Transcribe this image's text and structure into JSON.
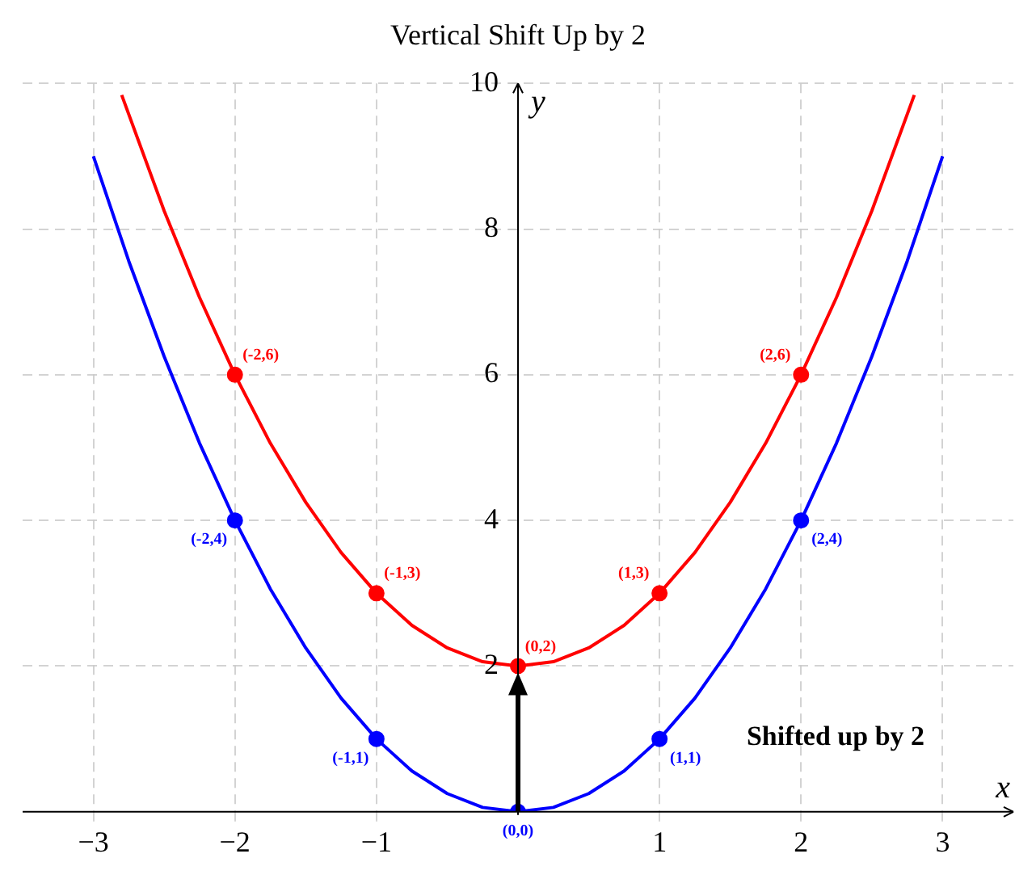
{
  "chart_data": {
    "type": "line",
    "title": "Vertical Shift Up by 2",
    "xlabel": "x",
    "ylabel": "y",
    "xlim": [
      -3.5,
      3.5
    ],
    "ylim": [
      0,
      10
    ],
    "xticks": [
      {
        "value": -3,
        "label": "−3"
      },
      {
        "value": -2,
        "label": "−2"
      },
      {
        "value": -1,
        "label": "−1"
      },
      1,
      2,
      3
    ],
    "yticks": [
      2,
      4,
      6,
      8,
      10
    ],
    "grid": true,
    "legend": false,
    "series": [
      {
        "color": "#0000ff",
        "marker": "none",
        "x": [
          -3,
          -2.75,
          -2.5,
          -2.25,
          -2,
          -1.75,
          -1.5,
          -1.25,
          -1,
          -0.75,
          -0.5,
          -0.25,
          0,
          0.25,
          0.5,
          0.75,
          1,
          1.25,
          1.5,
          1.75,
          2,
          2.25,
          2.5,
          2.75,
          3
        ],
        "values": [
          9,
          7.56,
          6.25,
          5.06,
          4,
          3.06,
          2.25,
          1.56,
          1,
          0.56,
          0.25,
          0.06,
          0,
          0.06,
          0.25,
          0.56,
          1,
          1.56,
          2.25,
          3.06,
          4,
          5.06,
          6.25,
          7.56,
          9
        ]
      },
      {
        "color": "#ff0000",
        "marker": "none",
        "x": [
          -2.8,
          -2.5,
          -2.25,
          -2,
          -1.75,
          -1.5,
          -1.25,
          -1,
          -0.75,
          -0.5,
          -0.25,
          0,
          0.25,
          0.5,
          0.75,
          1,
          1.25,
          1.5,
          1.75,
          2,
          2.25,
          2.5,
          2.8
        ],
        "values": [
          9.84,
          8.25,
          7.06,
          6,
          5.06,
          4.25,
          3.56,
          3,
          2.56,
          2.25,
          2.06,
          2,
          2.06,
          2.25,
          2.56,
          3,
          3.56,
          4.25,
          5.06,
          6,
          7.06,
          8.25,
          9.84
        ]
      },
      {
        "type": "scatter",
        "color": "#0000ff",
        "marker": "circle",
        "x": [
          -2,
          -1,
          0,
          1,
          2
        ],
        "values": [
          4,
          1,
          0,
          1,
          4
        ]
      },
      {
        "type": "scatter",
        "color": "#ff0000",
        "marker": "circle",
        "x": [
          -2,
          -1,
          0,
          1,
          2
        ],
        "values": [
          6,
          3,
          2,
          3,
          6
        ]
      }
    ],
    "annotations": [
      {
        "text": "(-2,4)",
        "x": -2,
        "y": 4
      },
      {
        "text": "(-1,1)",
        "x": -1,
        "y": 1
      },
      {
        "text": "(0,0)",
        "x": 0,
        "y": 0
      },
      {
        "text": "(1,1)",
        "x": 1,
        "y": 1
      },
      {
        "text": "(2,4)",
        "x": 2,
        "y": 4
      },
      {
        "text": "(-2,6)",
        "x": -2,
        "y": 6
      },
      {
        "text": "(-1,3)",
        "x": -1,
        "y": 3
      },
      {
        "text": "(0,2)",
        "x": 0,
        "y": 2
      },
      {
        "text": "(1,3)",
        "x": 1,
        "y": 3
      },
      {
        "text": "(2,6)",
        "x": 2,
        "y": 6
      },
      "Shifted up by 2"
    ]
  }
}
